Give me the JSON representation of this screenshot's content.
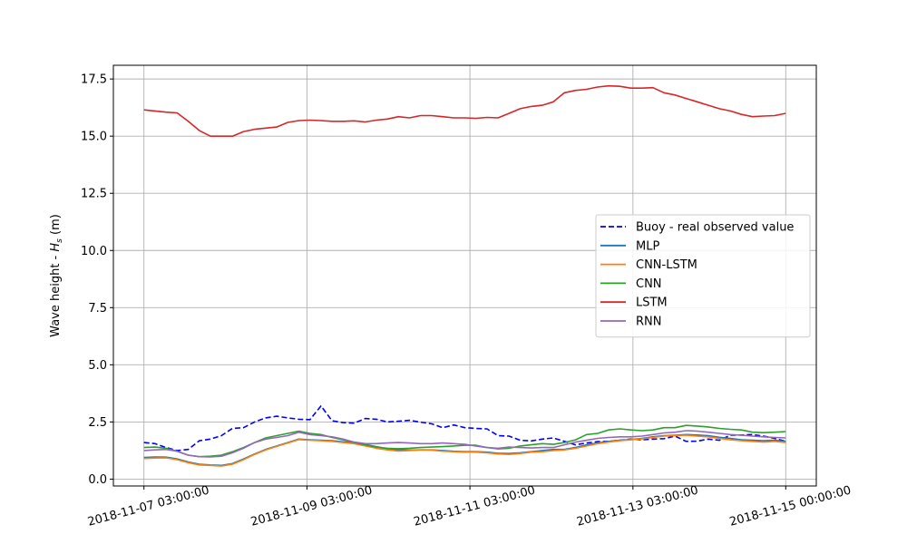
{
  "chart_data": {
    "type": "line",
    "title": "",
    "xlabel": "",
    "ylabel": "Wave height - H_s (m)",
    "ylabel_parts": {
      "prefix": "Wave height - ",
      "symbol": "H",
      "subscript": "s",
      "unit": " (m)"
    },
    "grid": true,
    "legend_placement": "center-right",
    "x_start": "2018-11-07 03:00:00",
    "x_end": "2018-11-15 00:00:00",
    "xlim": [
      "2018-11-06 18:00:00",
      "2018-11-15 09:00:00"
    ],
    "ylim": [
      -0.3,
      18.1
    ],
    "x_ticks": [
      "2018-11-07 03:00:00",
      "2018-11-09 03:00:00",
      "2018-11-11 03:00:00",
      "2018-11-13 03:00:00",
      "2018-11-15 00:00:00"
    ],
    "y_ticks": [
      0.0,
      2.5,
      5.0,
      7.5,
      10.0,
      12.5,
      15.0,
      17.5
    ],
    "y_tick_labels": [
      "0.0",
      "2.5",
      "5.0",
      "7.5",
      "10.0",
      "12.5",
      "15.0",
      "17.5"
    ],
    "series": [
      {
        "name": "Buoy - real observed value",
        "color": "#0000ff",
        "dashed": true,
        "values": [
          1.6,
          1.55,
          1.38,
          1.25,
          1.3,
          1.68,
          1.75,
          1.9,
          2.22,
          2.25,
          2.5,
          2.68,
          2.75,
          2.68,
          2.62,
          2.6,
          3.2,
          2.55,
          2.47,
          2.45,
          2.65,
          2.62,
          2.5,
          2.53,
          2.57,
          2.49,
          2.42,
          2.25,
          2.37,
          2.25,
          2.22,
          2.2,
          1.9,
          1.88,
          1.7,
          1.67,
          1.75,
          1.8,
          1.65,
          1.5,
          1.58,
          1.64,
          1.65,
          1.7,
          1.75,
          1.72,
          1.75,
          1.77,
          1.88,
          1.65,
          1.66,
          1.75,
          1.7,
          1.92,
          1.93,
          1.95,
          1.88,
          1.78,
          1.65
        ]
      },
      {
        "name": "MLP",
        "color": "#1f77b4",
        "dashed": false,
        "values": [
          0.95,
          0.97,
          0.96,
          0.88,
          0.75,
          0.65,
          0.62,
          0.6,
          0.68,
          0.88,
          1.1,
          1.3,
          1.45,
          1.6,
          1.75,
          1.72,
          1.7,
          1.68,
          1.63,
          1.58,
          1.52,
          1.42,
          1.33,
          1.28,
          1.27,
          1.28,
          1.28,
          1.25,
          1.22,
          1.2,
          1.2,
          1.18,
          1.13,
          1.12,
          1.15,
          1.2,
          1.25,
          1.3,
          1.3,
          1.38,
          1.5,
          1.58,
          1.65,
          1.7,
          1.73,
          1.78,
          1.85,
          1.9,
          1.92,
          1.95,
          1.93,
          1.9,
          1.83,
          1.78,
          1.72,
          1.7,
          1.68,
          1.7,
          1.65
        ]
      },
      {
        "name": "CNN-LSTM",
        "color": "#ff7f0e",
        "dashed": false,
        "values": [
          0.9,
          0.92,
          0.93,
          0.85,
          0.72,
          0.62,
          0.6,
          0.57,
          0.65,
          0.85,
          1.08,
          1.28,
          1.43,
          1.58,
          1.73,
          1.7,
          1.68,
          1.65,
          1.6,
          1.55,
          1.45,
          1.35,
          1.28,
          1.23,
          1.25,
          1.28,
          1.27,
          1.22,
          1.2,
          1.18,
          1.18,
          1.15,
          1.1,
          1.08,
          1.12,
          1.18,
          1.2,
          1.25,
          1.28,
          1.35,
          1.45,
          1.55,
          1.62,
          1.68,
          1.72,
          1.76,
          1.82,
          1.88,
          1.9,
          1.92,
          1.88,
          1.85,
          1.78,
          1.72,
          1.68,
          1.65,
          1.62,
          1.65,
          1.6
        ]
      },
      {
        "name": "CNN",
        "color": "#2ca02c",
        "dashed": false,
        "values": [
          1.38,
          1.4,
          1.35,
          1.22,
          1.05,
          0.98,
          1.0,
          1.05,
          1.2,
          1.38,
          1.6,
          1.8,
          1.9,
          2.0,
          2.1,
          2.0,
          1.95,
          1.82,
          1.72,
          1.6,
          1.5,
          1.4,
          1.35,
          1.33,
          1.35,
          1.38,
          1.4,
          1.42,
          1.45,
          1.48,
          1.48,
          1.38,
          1.32,
          1.35,
          1.45,
          1.5,
          1.55,
          1.52,
          1.6,
          1.72,
          1.95,
          2.0,
          2.15,
          2.2,
          2.15,
          2.12,
          2.15,
          2.25,
          2.25,
          2.35,
          2.32,
          2.28,
          2.22,
          2.18,
          2.15,
          2.05,
          2.03,
          2.05,
          2.08
        ]
      },
      {
        "name": "LSTM",
        "color": "#d62728",
        "dashed": false,
        "values": [
          16.15,
          16.1,
          16.05,
          16.02,
          15.65,
          15.25,
          15.0,
          15.0,
          15.0,
          15.2,
          15.3,
          15.35,
          15.4,
          15.6,
          15.68,
          15.7,
          15.68,
          15.65,
          15.65,
          15.67,
          15.62,
          15.7,
          15.75,
          15.85,
          15.8,
          15.9,
          15.9,
          15.85,
          15.8,
          15.8,
          15.78,
          15.82,
          15.8,
          16.0,
          16.2,
          16.3,
          16.35,
          16.5,
          16.9,
          17.0,
          17.05,
          17.15,
          17.2,
          17.18,
          17.1,
          17.1,
          17.12,
          16.9,
          16.8,
          16.65,
          16.5,
          16.35,
          16.2,
          16.1,
          15.95,
          15.85,
          15.88,
          15.9,
          16.0
        ]
      },
      {
        "name": "RNN",
        "color": "#9467bd",
        "dashed": false,
        "values": [
          1.25,
          1.28,
          1.3,
          1.22,
          1.05,
          0.98,
          0.97,
          1.0,
          1.15,
          1.35,
          1.6,
          1.75,
          1.82,
          1.9,
          2.05,
          1.95,
          1.9,
          1.85,
          1.75,
          1.62,
          1.55,
          1.55,
          1.58,
          1.6,
          1.58,
          1.55,
          1.55,
          1.58,
          1.55,
          1.52,
          1.45,
          1.38,
          1.35,
          1.4,
          1.38,
          1.36,
          1.38,
          1.38,
          1.5,
          1.62,
          1.7,
          1.78,
          1.82,
          1.85,
          1.85,
          1.88,
          1.95,
          2.02,
          2.05,
          2.12,
          2.1,
          2.05,
          2.0,
          1.95,
          1.92,
          1.88,
          1.85,
          1.82,
          1.8
        ]
      }
    ]
  }
}
